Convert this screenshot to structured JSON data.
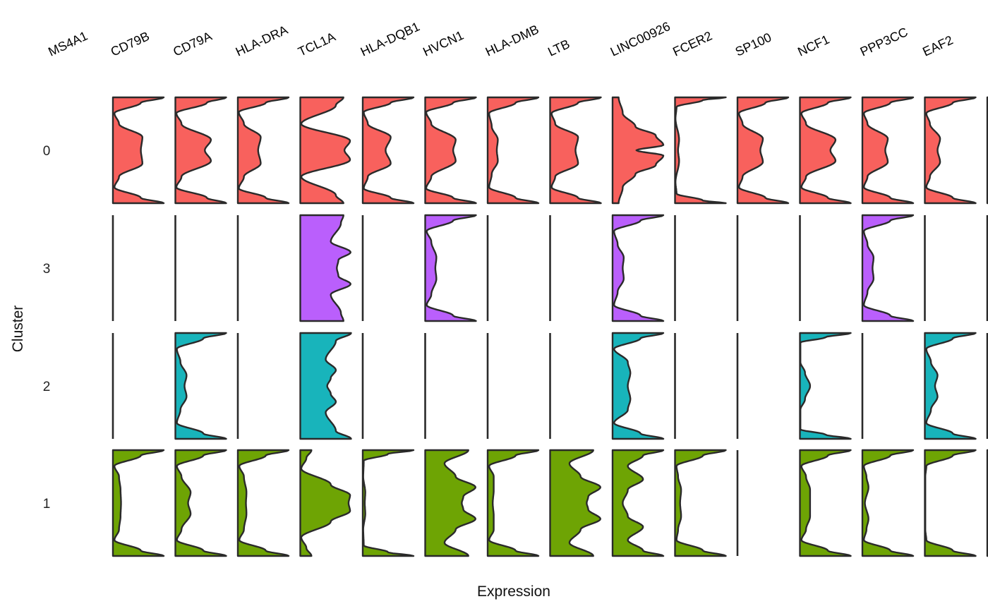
{
  "chart_data": {
    "type": "violin",
    "title": "",
    "xlabel": "Expression",
    "ylabel": "Cluster",
    "genes": [
      "MS4A1",
      "CD79B",
      "CD79A",
      "HLA-DRA",
      "TCL1A",
      "HLA-DQB1",
      "HVCN1",
      "HLA-DMB",
      "LTB",
      "LINC00926",
      "FCER2",
      "SP100",
      "NCF1",
      "PPP3CC",
      "EAF2"
    ],
    "gene_labels": [
      "MS4A1",
      "CD79B",
      "CD79A",
      "HLA-DRA",
      "TCL1A",
      "HLA-DQB1",
      "HVCN1",
      "HLA-DMB",
      "LTB",
      "LINC00926",
      "FCER2",
      "SP100",
      "NCF1",
      "PPP3CC",
      "EAF2"
    ],
    "clusters": [
      "0",
      "3",
      "2",
      "1"
    ],
    "cluster_colors": {
      "0": "#F8615D",
      "3": "#BA5FFC",
      "2": "#18B4BB",
      "1": "#6EA404"
    },
    "outline_color": "#2a2a2a",
    "density_profiles": {
      "0": [
        [
          [
            0,
            1
          ],
          [
            0.1,
            0.55
          ],
          [
            0.3,
            0.03
          ],
          [
            0.5,
            0.12
          ],
          [
            0.75,
            0.58
          ],
          [
            1,
            0.55
          ]
        ],
        [
          [
            0,
            1
          ],
          [
            0.1,
            0.62
          ],
          [
            0.3,
            0.02
          ],
          [
            0.5,
            0.12
          ],
          [
            0.8,
            0.7
          ],
          [
            1,
            0.58
          ]
        ],
        [
          [
            0,
            1
          ],
          [
            0.1,
            0.55
          ],
          [
            0.28,
            0.02
          ],
          [
            0.5,
            0.12
          ],
          [
            0.75,
            0.45
          ],
          [
            1,
            0.4
          ]
        ],
        [
          [
            0,
            0.85
          ],
          [
            0.15,
            0.7
          ],
          [
            0.5,
            0.02
          ],
          [
            0.82,
            0.98
          ],
          [
            1,
            0.87
          ]
        ],
        [
          [
            0,
            1
          ],
          [
            0.1,
            0.55
          ],
          [
            0.28,
            0.02
          ],
          [
            0.5,
            0.1
          ],
          [
            0.75,
            0.55
          ],
          [
            1,
            0.45
          ]
        ],
        [
          [
            0,
            1
          ],
          [
            0.1,
            0.55
          ],
          [
            0.28,
            0.02
          ],
          [
            0.5,
            0.12
          ],
          [
            0.8,
            0.6
          ],
          [
            1,
            0.55
          ]
        ],
        [
          [
            0,
            1
          ],
          [
            0.1,
            0.55
          ],
          [
            0.3,
            0.03
          ],
          [
            0.55,
            0.08
          ],
          [
            0.8,
            0.2
          ],
          [
            1,
            0.18
          ]
        ],
        [
          [
            0,
            1
          ],
          [
            0.1,
            0.55
          ],
          [
            0.3,
            0.03
          ],
          [
            0.5,
            0.1
          ],
          [
            0.75,
            0.55
          ],
          [
            1,
            0.5
          ]
        ],
        [
          [
            0,
            0.12
          ],
          [
            0.3,
            0.2
          ],
          [
            0.55,
            0.45
          ],
          [
            0.72,
            0.85
          ],
          [
            0.9,
            1
          ],
          [
            1,
            0.47
          ]
        ],
        [
          [
            0,
            1
          ],
          [
            0.05,
            0.55
          ],
          [
            0.18,
            0.03
          ],
          [
            0.4,
            0.01
          ],
          [
            0.8,
            0.08
          ],
          [
            1,
            0.06
          ]
        ],
        [
          [
            0,
            1
          ],
          [
            0.1,
            0.55
          ],
          [
            0.3,
            0.03
          ],
          [
            0.5,
            0.1
          ],
          [
            0.78,
            0.5
          ],
          [
            1,
            0.45
          ]
        ],
        [
          [
            0,
            1
          ],
          [
            0.1,
            0.55
          ],
          [
            0.3,
            0.03
          ],
          [
            0.5,
            0.12
          ],
          [
            0.8,
            0.7
          ],
          [
            1,
            0.6
          ]
        ],
        [
          [
            0,
            1
          ],
          [
            0.1,
            0.55
          ],
          [
            0.3,
            0.03
          ],
          [
            0.5,
            0.1
          ],
          [
            0.78,
            0.5
          ],
          [
            1,
            0.45
          ]
        ],
        [
          [
            0,
            1
          ],
          [
            0.1,
            0.55
          ],
          [
            0.3,
            0.03
          ],
          [
            0.5,
            0.1
          ],
          [
            0.78,
            0.3
          ],
          [
            1,
            0.25
          ]
        ],
        [
          [
            0,
            1
          ],
          [
            0.08,
            0.3
          ],
          [
            0.2,
            0.01
          ],
          [
            0.5,
            0.01
          ],
          [
            0.8,
            0.01
          ],
          [
            1,
            0.01
          ]
        ]
      ],
      "3": [
        [
          [
            0,
            0
          ]
        ],
        [
          [
            0,
            0
          ]
        ],
        [
          [
            0,
            0
          ]
        ],
        [
          [
            0,
            0.85
          ],
          [
            0.15,
            0.8
          ],
          [
            0.5,
            0.6
          ],
          [
            0.7,
            0.99
          ],
          [
            0.85,
            0.75
          ],
          [
            1,
            0.72
          ]
        ],
        [
          [
            0,
            0
          ]
        ],
        [
          [
            0,
            1
          ],
          [
            0.1,
            0.55
          ],
          [
            0.3,
            0.03
          ],
          [
            0.5,
            0.12
          ],
          [
            0.8,
            0.22
          ],
          [
            1,
            0.2
          ]
        ],
        [
          [
            0,
            0
          ]
        ],
        [
          [
            0,
            0
          ]
        ],
        [
          [
            0,
            1
          ],
          [
            0.1,
            0.55
          ],
          [
            0.3,
            0.03
          ],
          [
            0.55,
            0.1
          ],
          [
            0.8,
            0.22
          ],
          [
            1,
            0.2
          ]
        ],
        [
          [
            0,
            0
          ]
        ],
        [
          [
            0,
            0
          ]
        ],
        [
          [
            0,
            0
          ]
        ],
        [
          [
            0,
            1
          ],
          [
            0.1,
            0.55
          ],
          [
            0.3,
            0.03
          ],
          [
            0.55,
            0.1
          ],
          [
            0.8,
            0.22
          ],
          [
            1,
            0.2
          ]
        ],
        [
          [
            0,
            0
          ]
        ],
        [
          [
            0,
            0
          ]
        ]
      ],
      "2": [
        [
          [
            0,
            0
          ]
        ],
        [
          [
            0,
            1
          ],
          [
            0.1,
            0.55
          ],
          [
            0.3,
            0.03
          ],
          [
            0.55,
            0.1
          ],
          [
            0.8,
            0.22
          ],
          [
            1,
            0.18
          ]
        ],
        [
          [
            0,
            0
          ]
        ],
        [
          [
            0,
            1
          ],
          [
            0.15,
            0.7
          ],
          [
            0.5,
            0.5
          ],
          [
            0.7,
            0.7
          ],
          [
            0.85,
            0.6
          ],
          [
            1,
            0.53
          ]
        ],
        [
          [
            0,
            0
          ]
        ],
        [
          [
            0,
            0
          ]
        ],
        [
          [
            0,
            0
          ]
        ],
        [
          [
            0,
            0
          ]
        ],
        [
          [
            0,
            1
          ],
          [
            0.1,
            0.55
          ],
          [
            0.3,
            0.03
          ],
          [
            0.55,
            0.3
          ],
          [
            0.75,
            0.35
          ],
          [
            1,
            0.3
          ]
        ],
        [
          [
            0,
            0
          ]
        ],
        [
          [
            0,
            0
          ]
        ],
        [
          [
            0,
            1
          ],
          [
            0.08,
            0.5
          ],
          [
            0.18,
            0.01
          ],
          [
            0.55,
            0.01
          ],
          [
            0.75,
            0.1
          ],
          [
            1,
            0.2
          ]
        ],
        [
          [
            0,
            0
          ]
        ],
        [
          [
            0,
            1
          ],
          [
            0.1,
            0.55
          ],
          [
            0.3,
            0.03
          ],
          [
            0.55,
            0.12
          ],
          [
            0.8,
            0.25
          ],
          [
            1,
            0.2
          ]
        ],
        [
          [
            0,
            0
          ]
        ]
      ],
      "1": [
        [
          [
            0,
            1
          ],
          [
            0.1,
            0.55
          ],
          [
            0.3,
            0.03
          ],
          [
            0.5,
            0.12
          ],
          [
            0.75,
            0.15
          ],
          [
            1,
            0.16
          ]
        ],
        [
          [
            0,
            1
          ],
          [
            0.1,
            0.55
          ],
          [
            0.3,
            0.03
          ],
          [
            0.5,
            0.12
          ],
          [
            0.8,
            0.3
          ],
          [
            1,
            0.25
          ]
        ],
        [
          [
            0,
            1
          ],
          [
            0.1,
            0.55
          ],
          [
            0.3,
            0.03
          ],
          [
            0.5,
            0.12
          ],
          [
            0.8,
            0.17
          ],
          [
            1,
            0.16
          ]
        ],
        [
          [
            0,
            0.22
          ],
          [
            0.15,
            0.12
          ],
          [
            0.35,
            0.02
          ],
          [
            0.65,
            0.6
          ],
          [
            0.85,
            0.98
          ],
          [
            1,
            0.95
          ]
        ],
        [
          [
            0,
            1
          ],
          [
            0.07,
            0.5
          ],
          [
            0.2,
            0.02
          ],
          [
            0.5,
            0.01
          ],
          [
            0.8,
            0.05
          ],
          [
            1,
            0.04
          ]
        ],
        [
          [
            0,
            0.85
          ],
          [
            0.25,
            0.38
          ],
          [
            0.5,
            0.6
          ],
          [
            0.7,
            0.99
          ],
          [
            0.88,
            0.75
          ],
          [
            1,
            0.72
          ]
        ],
        [
          [
            0,
            1
          ],
          [
            0.1,
            0.55
          ],
          [
            0.3,
            0.03
          ],
          [
            0.5,
            0.12
          ],
          [
            0.75,
            0.12
          ],
          [
            1,
            0.1
          ]
        ],
        [
          [
            0,
            0.85
          ],
          [
            0.25,
            0.38
          ],
          [
            0.5,
            0.6
          ],
          [
            0.7,
            0.99
          ],
          [
            0.88,
            0.75
          ],
          [
            1,
            0.72
          ]
        ],
        [
          [
            0,
            1
          ],
          [
            0.1,
            0.6
          ],
          [
            0.3,
            0.3
          ],
          [
            0.55,
            0.6
          ],
          [
            0.75,
            0.3
          ],
          [
            1,
            0.2
          ]
        ],
        [
          [
            0,
            1
          ],
          [
            0.1,
            0.55
          ],
          [
            0.3,
            0.03
          ],
          [
            0.5,
            0.06
          ],
          [
            0.75,
            0.12
          ],
          [
            1,
            0.1
          ]
        ],
        [
          [
            0,
            0
          ]
        ],
        [
          [
            0,
            1
          ],
          [
            0.1,
            0.55
          ],
          [
            0.3,
            0.03
          ],
          [
            0.5,
            0.12
          ],
          [
            0.75,
            0.2
          ],
          [
            1,
            0.2
          ]
        ],
        [
          [
            0,
            1
          ],
          [
            0.1,
            0.55
          ],
          [
            0.3,
            0.03
          ],
          [
            0.5,
            0.08
          ],
          [
            0.7,
            0.12
          ],
          [
            1,
            0.05
          ]
        ],
        [
          [
            0,
            1
          ],
          [
            0.1,
            0.55
          ],
          [
            0.3,
            0.03
          ],
          [
            0.5,
            0.01
          ],
          [
            0.75,
            0.01
          ],
          [
            1,
            0.01
          ]
        ],
        [
          [
            0,
            1
          ],
          [
            0.1,
            0.55
          ],
          [
            0.3,
            0.03
          ],
          [
            0.5,
            0.1
          ],
          [
            0.7,
            0.15
          ],
          [
            1,
            0.1
          ]
        ]
      ]
    },
    "grid": false,
    "legend": "none"
  }
}
